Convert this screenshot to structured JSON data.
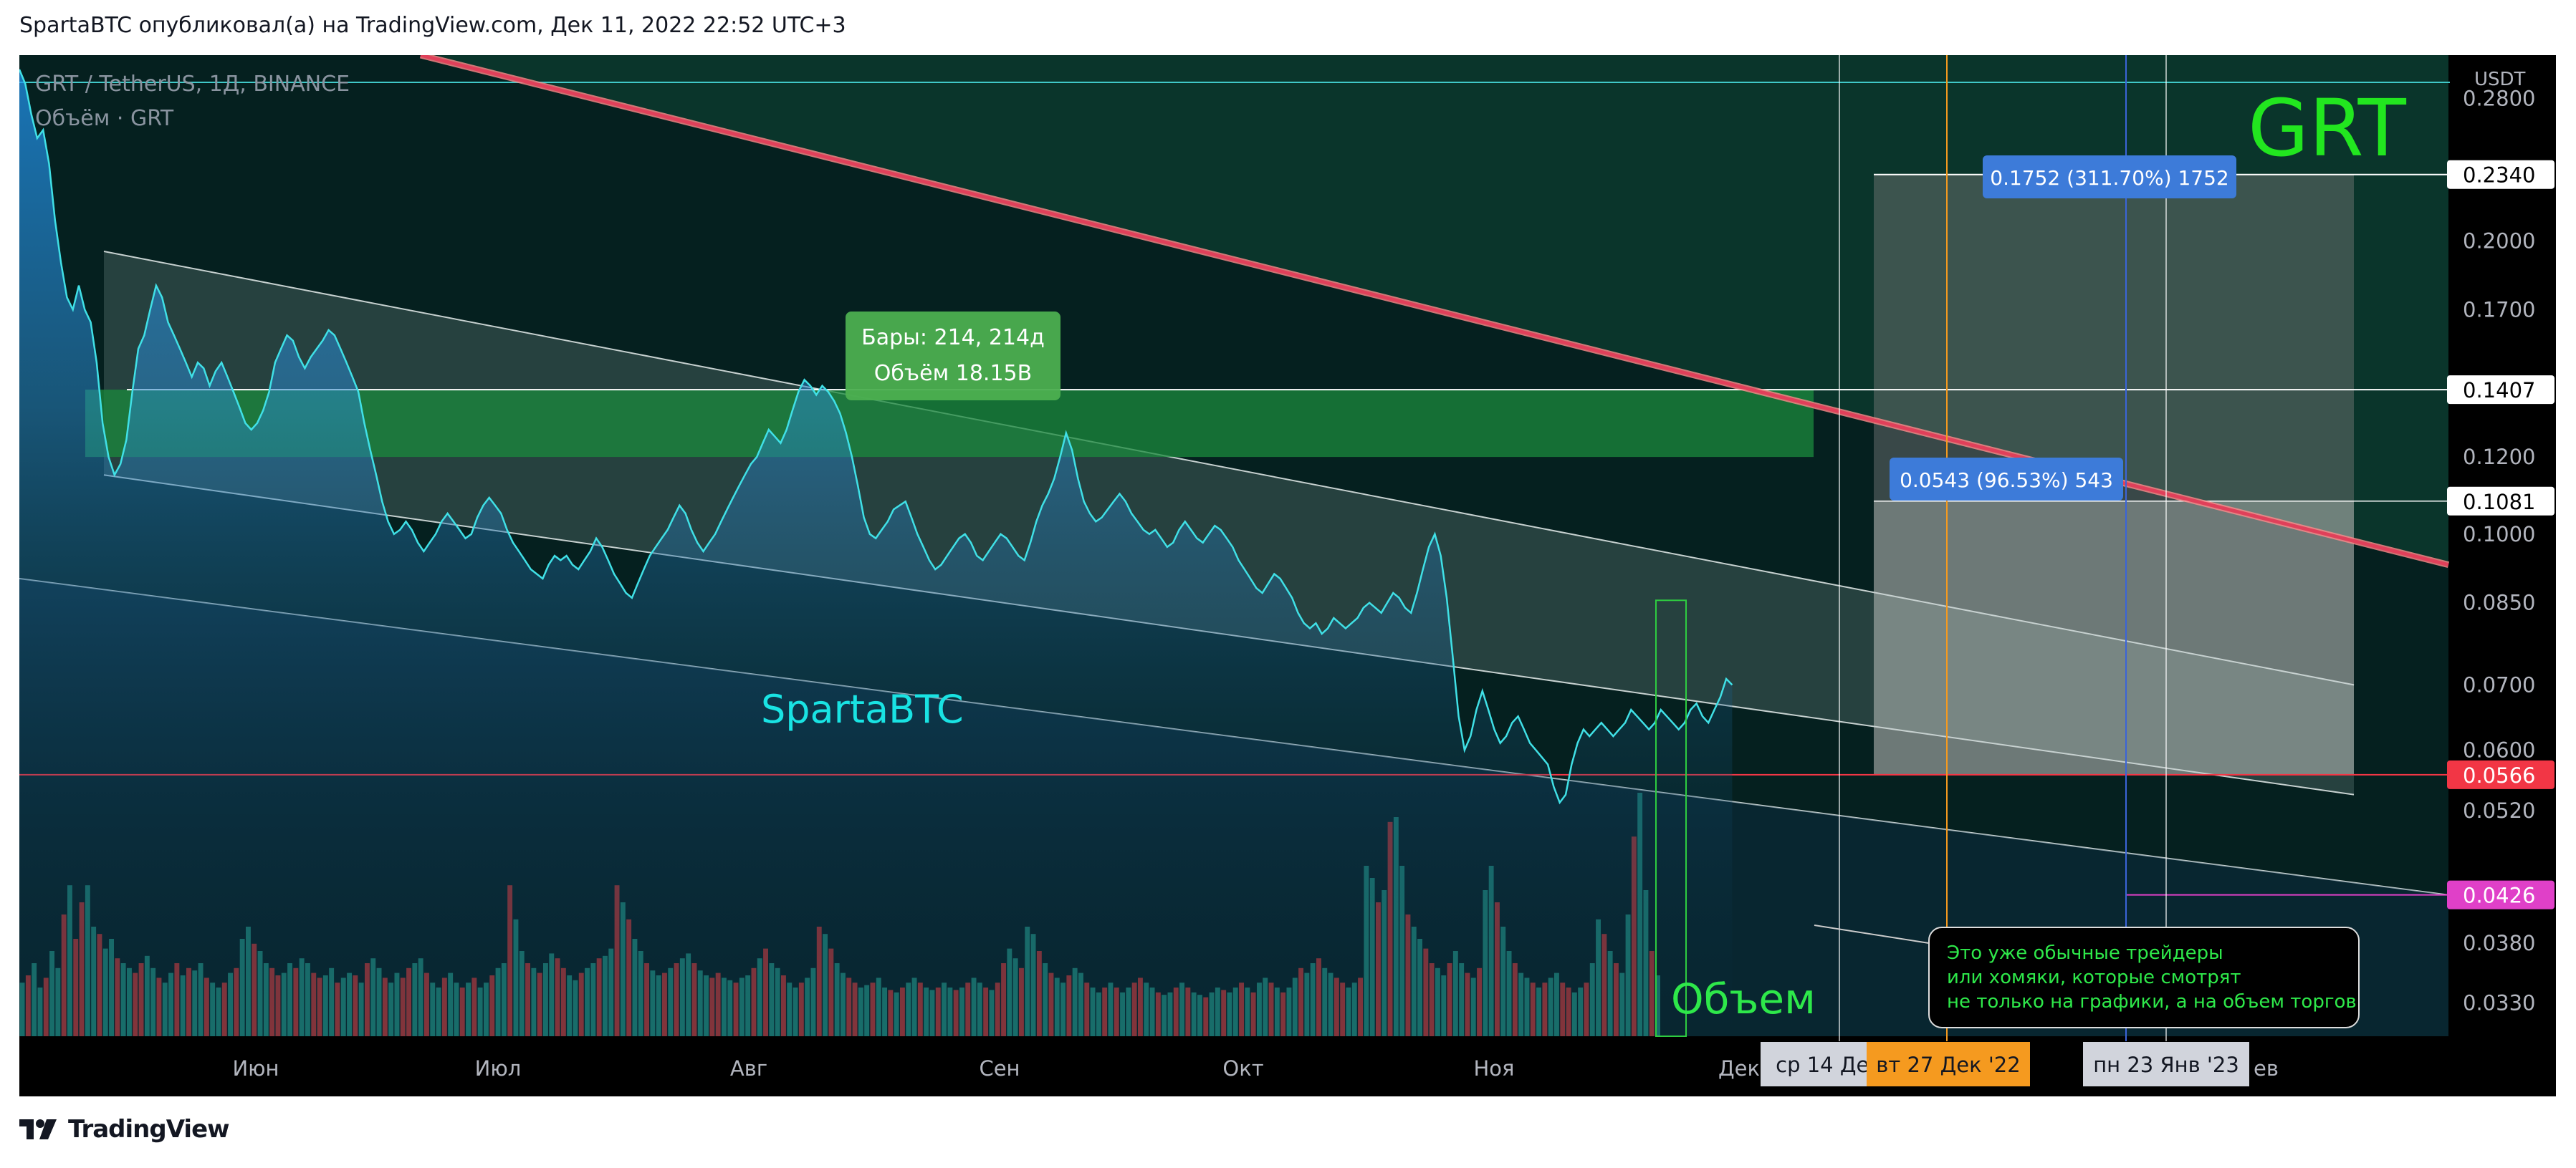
{
  "header": {
    "publish_line": "SpartaBTC опубликовал(а) на TradingView.com, Дек 11, 2022 22:52 UTC+3"
  },
  "footer": {
    "brand": "TradingView"
  },
  "colors": {
    "background": "#000000",
    "line": "#40e0e6",
    "red_trendline": "#e0405a",
    "green_zone": "#1b8a3e",
    "vol_up": "#26a69a",
    "vol_down": "#ef5350",
    "price_label_red": "#f23645",
    "price_label_magenta": "#e040c8",
    "measure_blue": "#3d7bd9",
    "date_orange": "#f59a1f"
  },
  "chart_data": {
    "type": "line",
    "title": "GRT / TetherUS, 1Д, BINANCE",
    "volume_legend": "Объём · GRT",
    "scale": "log",
    "y_unit": "USDT",
    "ylim": [
      0.0305,
      0.3
    ],
    "y_ticks": [
      "0.2800",
      "0.2000",
      "0.1700",
      "0.1200",
      "0.1000",
      "0.0850",
      "0.0700",
      "0.0600",
      "0.0520",
      "0.0380",
      "0.0330"
    ],
    "x_month_labels": [
      "Июн",
      "Июл",
      "Авг",
      "Сен",
      "Окт",
      "Ноя",
      "Дек"
    ],
    "x_date_tags": [
      {
        "text": "ср 14 Дек",
        "style": "gray"
      },
      {
        "text": "вт 27 Дек '22",
        "style": "orange"
      },
      {
        "text": "пн 23 Янв '23",
        "style": "gray"
      }
    ],
    "price_tags": [
      {
        "text": "0.2340",
        "value": 0.234,
        "style": "white"
      },
      {
        "text": "0.1407",
        "value": 0.1407,
        "style": "white"
      },
      {
        "text": "0.1081",
        "value": 0.1081,
        "style": "white"
      },
      {
        "text": "0.0566",
        "value": 0.0566,
        "style": "red"
      },
      {
        "text": "0.0426",
        "value": 0.0426,
        "style": "magenta"
      }
    ],
    "series": [
      {
        "name": "GRT / TetherUS",
        "x_day_index_start": 0,
        "values": [
          0.3,
          0.29,
          0.27,
          0.255,
          0.26,
          0.24,
          0.21,
          0.19,
          0.175,
          0.17,
          0.18,
          0.17,
          0.165,
          0.15,
          0.13,
          0.12,
          0.115,
          0.118,
          0.125,
          0.14,
          0.155,
          0.16,
          0.17,
          0.18,
          0.175,
          0.165,
          0.16,
          0.155,
          0.15,
          0.145,
          0.15,
          0.148,
          0.142,
          0.147,
          0.15,
          0.145,
          0.14,
          0.135,
          0.13,
          0.128,
          0.13,
          0.134,
          0.14,
          0.15,
          0.155,
          0.16,
          0.158,
          0.152,
          0.148,
          0.152,
          0.155,
          0.158,
          0.162,
          0.16,
          0.155,
          0.15,
          0.145,
          0.14,
          0.13,
          0.122,
          0.115,
          0.108,
          0.103,
          0.1,
          0.101,
          0.103,
          0.101,
          0.098,
          0.096,
          0.098,
          0.1,
          0.103,
          0.105,
          0.103,
          0.101,
          0.099,
          0.1,
          0.104,
          0.107,
          0.109,
          0.107,
          0.105,
          0.101,
          0.098,
          0.096,
          0.094,
          0.092,
          0.091,
          0.09,
          0.093,
          0.095,
          0.094,
          0.095,
          0.093,
          0.092,
          0.094,
          0.096,
          0.099,
          0.097,
          0.094,
          0.091,
          0.089,
          0.087,
          0.086,
          0.089,
          0.092,
          0.095,
          0.097,
          0.099,
          0.101,
          0.104,
          0.107,
          0.105,
          0.101,
          0.098,
          0.096,
          0.098,
          0.1,
          0.103,
          0.106,
          0.109,
          0.112,
          0.115,
          0.118,
          0.12,
          0.124,
          0.128,
          0.126,
          0.124,
          0.128,
          0.134,
          0.14,
          0.144,
          0.142,
          0.139,
          0.142,
          0.14,
          0.137,
          0.133,
          0.127,
          0.12,
          0.112,
          0.104,
          0.1,
          0.099,
          0.101,
          0.103,
          0.106,
          0.107,
          0.108,
          0.104,
          0.1,
          0.097,
          0.094,
          0.092,
          0.093,
          0.095,
          0.097,
          0.099,
          0.1,
          0.098,
          0.095,
          0.094,
          0.096,
          0.098,
          0.1,
          0.099,
          0.097,
          0.095,
          0.094,
          0.098,
          0.103,
          0.107,
          0.11,
          0.114,
          0.12,
          0.127,
          0.122,
          0.114,
          0.108,
          0.105,
          0.103,
          0.104,
          0.106,
          0.108,
          0.11,
          0.108,
          0.105,
          0.103,
          0.101,
          0.1,
          0.101,
          0.099,
          0.097,
          0.098,
          0.101,
          0.103,
          0.101,
          0.099,
          0.098,
          0.1,
          0.102,
          0.101,
          0.099,
          0.097,
          0.094,
          0.092,
          0.09,
          0.088,
          0.087,
          0.089,
          0.091,
          0.09,
          0.088,
          0.086,
          0.083,
          0.081,
          0.08,
          0.081,
          0.079,
          0.08,
          0.082,
          0.081,
          0.08,
          0.081,
          0.082,
          0.084,
          0.085,
          0.084,
          0.083,
          0.085,
          0.087,
          0.086,
          0.084,
          0.083,
          0.087,
          0.092,
          0.097,
          0.1,
          0.095,
          0.086,
          0.075,
          0.065,
          0.06,
          0.062,
          0.066,
          0.069,
          0.066,
          0.063,
          0.061,
          0.062,
          0.064,
          0.065,
          0.063,
          0.061,
          0.06,
          0.059,
          0.058,
          0.055,
          0.053,
          0.054,
          0.058,
          0.061,
          0.063,
          0.062,
          0.063,
          0.064,
          0.063,
          0.062,
          0.063,
          0.064,
          0.066,
          0.065,
          0.064,
          0.063,
          0.064,
          0.066,
          0.065,
          0.064,
          0.063,
          0.064,
          0.066,
          0.067,
          0.065,
          0.064,
          0.066,
          0.068,
          0.071,
          0.07
        ]
      }
    ],
    "volume_relative": [
      0.22,
      0.25,
      0.3,
      0.2,
      0.24,
      0.35,
      0.28,
      0.5,
      0.62,
      0.4,
      0.55,
      0.62,
      0.45,
      0.42,
      0.36,
      0.4,
      0.32,
      0.3,
      0.28,
      0.26,
      0.3,
      0.33,
      0.28,
      0.24,
      0.22,
      0.26,
      0.3,
      0.25,
      0.28,
      0.27,
      0.3,
      0.24,
      0.22,
      0.2,
      0.22,
      0.26,
      0.28,
      0.4,
      0.45,
      0.38,
      0.35,
      0.3,
      0.28,
      0.25,
      0.26,
      0.3,
      0.28,
      0.32,
      0.3,
      0.26,
      0.24,
      0.25,
      0.28,
      0.22,
      0.24,
      0.26,
      0.25,
      0.22,
      0.3,
      0.32,
      0.28,
      0.24,
      0.22,
      0.26,
      0.24,
      0.28,
      0.3,
      0.32,
      0.26,
      0.22,
      0.2,
      0.24,
      0.26,
      0.22,
      0.2,
      0.22,
      0.24,
      0.2,
      0.22,
      0.25,
      0.28,
      0.3,
      0.62,
      0.48,
      0.35,
      0.3,
      0.28,
      0.26,
      0.3,
      0.34,
      0.32,
      0.28,
      0.25,
      0.23,
      0.26,
      0.28,
      0.3,
      0.32,
      0.33,
      0.36,
      0.62,
      0.55,
      0.48,
      0.4,
      0.35,
      0.3,
      0.27,
      0.25,
      0.26,
      0.28,
      0.3,
      0.32,
      0.34,
      0.3,
      0.27,
      0.25,
      0.24,
      0.26,
      0.24,
      0.23,
      0.22,
      0.24,
      0.25,
      0.28,
      0.32,
      0.36,
      0.3,
      0.28,
      0.25,
      0.22,
      0.2,
      0.22,
      0.24,
      0.28,
      0.45,
      0.42,
      0.36,
      0.3,
      0.26,
      0.24,
      0.22,
      0.2,
      0.21,
      0.22,
      0.24,
      0.2,
      0.19,
      0.18,
      0.2,
      0.22,
      0.24,
      0.22,
      0.2,
      0.19,
      0.2,
      0.22,
      0.2,
      0.19,
      0.2,
      0.22,
      0.24,
      0.22,
      0.2,
      0.19,
      0.22,
      0.3,
      0.36,
      0.32,
      0.28,
      0.45,
      0.42,
      0.35,
      0.3,
      0.26,
      0.24,
      0.22,
      0.25,
      0.28,
      0.26,
      0.22,
      0.2,
      0.18,
      0.2,
      0.22,
      0.2,
      0.18,
      0.2,
      0.22,
      0.24,
      0.22,
      0.2,
      0.18,
      0.17,
      0.18,
      0.2,
      0.22,
      0.2,
      0.18,
      0.17,
      0.16,
      0.18,
      0.2,
      0.19,
      0.18,
      0.2,
      0.22,
      0.2,
      0.18,
      0.22,
      0.24,
      0.22,
      0.2,
      0.18,
      0.2,
      0.24,
      0.28,
      0.26,
      0.3,
      0.32,
      0.28,
      0.26,
      0.24,
      0.22,
      0.2,
      0.22,
      0.24,
      0.7,
      0.65,
      0.55,
      0.6,
      0.88,
      0.9,
      0.7,
      0.5,
      0.45,
      0.4,
      0.36,
      0.3,
      0.28,
      0.25,
      0.3,
      0.35,
      0.3,
      0.26,
      0.24,
      0.28,
      0.6,
      0.7,
      0.55,
      0.45,
      0.35,
      0.3,
      0.26,
      0.24,
      0.22,
      0.2,
      0.22,
      0.24,
      0.26,
      0.22,
      0.2,
      0.18,
      0.2,
      0.22,
      0.3,
      0.48,
      0.42,
      0.35,
      0.3,
      0.26,
      0.5,
      0.82,
      1.0,
      0.6,
      0.35,
      0.25
    ],
    "volume_down_flags": [
      0,
      1,
      0,
      0,
      1,
      0,
      0,
      1,
      0,
      1,
      1,
      0,
      0,
      1,
      0,
      0,
      1,
      0,
      0,
      1,
      1,
      0,
      0,
      1,
      0,
      0,
      1,
      0,
      1,
      0,
      0,
      1,
      0,
      0,
      1,
      0,
      1,
      0,
      0,
      1,
      0,
      0,
      1,
      1,
      0,
      0,
      1,
      0,
      0,
      1,
      1,
      0,
      0,
      1,
      0,
      0,
      1,
      0,
      1,
      0,
      0,
      1,
      0,
      0,
      1,
      1,
      0,
      0,
      1,
      0,
      0,
      1,
      0,
      0,
      1,
      0,
      1,
      0,
      0,
      1,
      0,
      0,
      1,
      0,
      0,
      1,
      0,
      1,
      0,
      0,
      1,
      1,
      0,
      0,
      1,
      0,
      0,
      1,
      0,
      0,
      1,
      0,
      1,
      0,
      0,
      1,
      0,
      0,
      1,
      0,
      1,
      0,
      0,
      1,
      0,
      0,
      1,
      1,
      0,
      0,
      1,
      0,
      0,
      1,
      0,
      1,
      0,
      0,
      1,
      0,
      0,
      1,
      0,
      0,
      1,
      0,
      1,
      0,
      0,
      1,
      1,
      0,
      0,
      1,
      0,
      0,
      1,
      0,
      1,
      0,
      0,
      1,
      0,
      0,
      1,
      0,
      0,
      1,
      0,
      1,
      0,
      0,
      1,
      0,
      1,
      1,
      0,
      0,
      1,
      0,
      0,
      1,
      0,
      1,
      0,
      0,
      1,
      0,
      0,
      1,
      0,
      0,
      1,
      0,
      1,
      0,
      0,
      1,
      1,
      0,
      0,
      1,
      0,
      0,
      1,
      0,
      1,
      0,
      0,
      1,
      0,
      0,
      1,
      0,
      0,
      1,
      0,
      1,
      0,
      0,
      1,
      0,
      1,
      0,
      0,
      1,
      0,
      0,
      1,
      0,
      0,
      1,
      1,
      0,
      0,
      1,
      0,
      0,
      1,
      0,
      1,
      0,
      0,
      1,
      0,
      0,
      1,
      1,
      0,
      0,
      1,
      0,
      0,
      1,
      0,
      1,
      0,
      0,
      1,
      0,
      0,
      1,
      0,
      0,
      1,
      0,
      1,
      0,
      0,
      1,
      1,
      0,
      0,
      1,
      0,
      0,
      1,
      0,
      1,
      0,
      0,
      1,
      0,
      0,
      1,
      0,
      0,
      1,
      0,
      1,
      0,
      0,
      1,
      1,
      0,
      0,
      1,
      0,
      1,
      0,
      0,
      1,
      0,
      0,
      1
    ],
    "annotations": {
      "bars_box": {
        "line1": "Бары: 214, 214д",
        "line2": "Объём 18.15B"
      },
      "measure_1": "0.1752 (311.70%) 1752",
      "measure_2": "0.0543 (96.53%) 543",
      "grt_label": "GRT",
      "watermark_label": "SpartaBTC",
      "volume_label": "Объем",
      "callout_lines": [
        "Это уже обычные трейдеры",
        "или хомяки, которые смотрят",
        "не только на графики, а на объем торгов"
      ],
      "month_partial": "ев"
    }
  }
}
